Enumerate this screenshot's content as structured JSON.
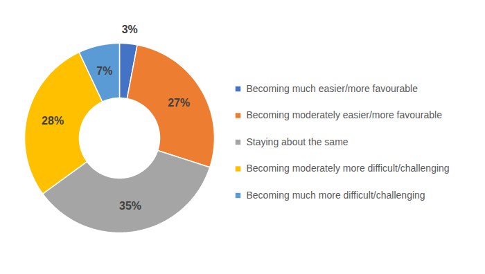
{
  "chart_data": {
    "type": "donut",
    "categories": [
      "Becoming much easier/more favourable",
      "Becoming moderately easier/more favourable",
      "Staying about the same",
      "Becoming moderately more difficult/challenging",
      "Becoming much more difficult/challenging"
    ],
    "values": [
      3,
      27,
      35,
      28,
      7
    ],
    "value_labels": [
      "3%",
      "27%",
      "35%",
      "28%",
      "7%"
    ],
    "colors": [
      "#4472c4",
      "#ed7d31",
      "#a5a5a5",
      "#ffc000",
      "#5b9bd5"
    ],
    "data_labels": true,
    "legend": "right"
  }
}
